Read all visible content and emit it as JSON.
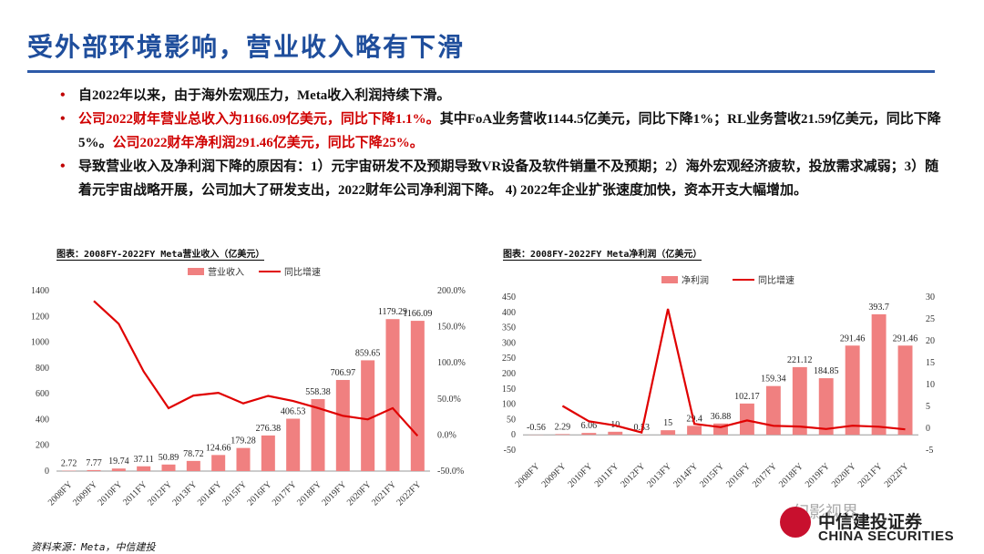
{
  "title": "受外部环境影响，营业收入略有下滑",
  "bullets": [
    {
      "parts": [
        {
          "text": "自2022年以来，由于海外宏观压力，Meta收入利润持续下滑。",
          "red": false
        }
      ]
    },
    {
      "parts": [
        {
          "text": "公司2022财年营业总收入为1166.09亿美元，同比下降1.1%。",
          "red": true
        },
        {
          "text": "其中FoA业务营收1144.5亿美元，同比下降1%；RL业务营收21.59亿美元，同比下降5%。",
          "red": false
        },
        {
          "text": "公司2022财年净利润291.46亿美元，同比下降25%。",
          "red": true
        }
      ]
    },
    {
      "parts": [
        {
          "text": "导致营业收入及净利润下降的原因有：1）元宇宙研发不及预期导致VR设备及软件销量不及预期；2）海外宏观经济疲软，投放需求减弱；3）随着元宇宙战略开展，公司加大了研发支出，2022财年公司净利润下降。 4) 2022年企业扩张速度加快，资本开支大幅增加。",
          "red": false
        }
      ]
    }
  ],
  "chart_data": [
    {
      "type": "bar",
      "caption": "图表：2008FY-2022FY Meta营业收入（亿美元）",
      "categories": [
        "2008FY",
        "2009FY",
        "2010FY",
        "2011FY",
        "2012FY",
        "2013FY",
        "2014FY",
        "2015FY",
        "2016FY",
        "2017FY",
        "2018FY",
        "2019FY",
        "2020FY",
        "2021FY",
        "2022FY"
      ],
      "series": [
        {
          "name": "营业收入",
          "kind": "bar",
          "axis": "left",
          "color": "#f08080",
          "values": [
            2.72,
            7.77,
            19.74,
            37.11,
            50.89,
            78.72,
            124.66,
            179.28,
            276.38,
            406.53,
            558.38,
            706.97,
            859.65,
            1179.29,
            1166.09
          ],
          "labels": [
            "2.72",
            "7.77",
            "19.74",
            "37.11",
            "50.89",
            "78.72",
            "124.66",
            "179.28",
            "276.38",
            "406.53",
            "558.38",
            "706.97",
            "859.65",
            "1179.29",
            "1166.09"
          ]
        },
        {
          "name": "同比增速",
          "kind": "line",
          "axis": "right",
          "color": "#e00000",
          "values": [
            null,
            185.7,
            154.1,
            88.0,
            37.1,
            54.7,
            58.4,
            43.8,
            54.2,
            47.1,
            37.4,
            26.6,
            21.6,
            37.2,
            -1.1
          ]
        }
      ],
      "yleft": {
        "min": 0,
        "max": 1400,
        "ticks": [
          "0",
          "200",
          "400",
          "600",
          "800",
          "1000",
          "1200",
          "1400"
        ]
      },
      "yright": {
        "min": -50,
        "max": 200,
        "ticks": [
          "-50.0%",
          "0.0%",
          "50.0%",
          "100.0%",
          "150.0%",
          "200.0%"
        ]
      }
    },
    {
      "type": "bar",
      "caption": "图表：2008FY-2022FY Meta净利润（亿美元）",
      "categories": [
        "2008FY",
        "2009FY",
        "2010FY",
        "2011FY",
        "2012FY",
        "2013FY",
        "2014FY",
        "2015FY",
        "2016FY",
        "2017FY",
        "2018FY",
        "2019FY",
        "2020FY",
        "2021FY",
        "2022FY"
      ],
      "series": [
        {
          "name": "净利润",
          "kind": "bar",
          "axis": "left",
          "color": "#f08080",
          "values": [
            -0.56,
            2.29,
            6.06,
            10,
            0.53,
            15,
            29.4,
            36.88,
            102.17,
            159.34,
            221.12,
            184.85,
            291.46,
            393.7,
            291.46
          ],
          "labels": [
            "-0.56",
            "2.29",
            "6.06",
            "10",
            "0.53",
            "15",
            "29.4",
            "36.88",
            "102.17",
            "159.34",
            "221.12",
            "184.85",
            "291.46",
            "393.7",
            "291.46"
          ]
        },
        {
          "name": "同比增速",
          "kind": "line",
          "axis": "right",
          "color": "#e00000",
          "values": [
            null,
            5.1,
            1.6,
            0.65,
            -0.95,
            27.3,
            1.0,
            0.25,
            1.8,
            0.56,
            0.39,
            -0.16,
            0.58,
            0.35,
            -0.26
          ]
        }
      ],
      "yleft": {
        "min": -50,
        "max": 450,
        "ticks": [
          "-50",
          "0",
          "50",
          "100",
          "150",
          "200",
          "250",
          "300",
          "350",
          "400",
          "450"
        ]
      },
      "yright": {
        "min": -5,
        "max": 30,
        "ticks": [
          "-5",
          "0",
          "5",
          "10",
          "15",
          "20",
          "25",
          "30"
        ]
      }
    }
  ],
  "source": "资料来源：Meta，中信建投",
  "watermark": "幻影视界",
  "logo": {
    "cn": "中信建投证券",
    "en": "CHINA SECURITIES"
  }
}
